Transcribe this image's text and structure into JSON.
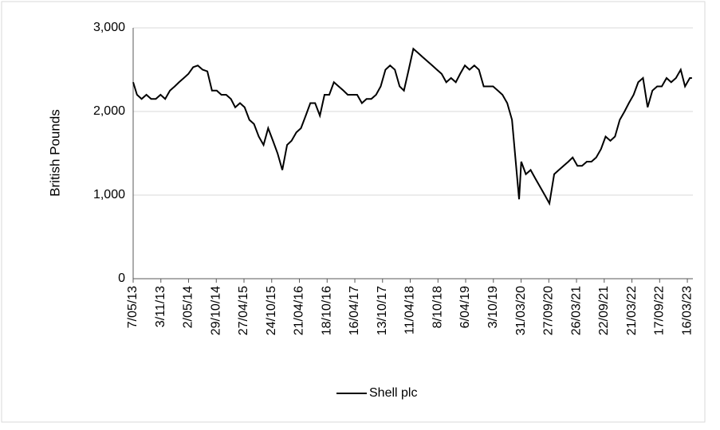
{
  "chart_data": {
    "type": "line",
    "y_label": "British Pounds",
    "x": [
      "7/05/13",
      "1/06/13",
      "1/07/13",
      "1/08/13",
      "1/09/13",
      "1/10/13",
      "1/11/13",
      "1/12/13",
      "1/01/14",
      "1/02/14",
      "1/03/14",
      "1/04/14",
      "1/05/14",
      "1/06/14",
      "1/07/14",
      "1/08/14",
      "1/09/14",
      "1/10/14",
      "1/11/14",
      "1/12/14",
      "1/01/15",
      "1/02/15",
      "1/03/15",
      "1/04/15",
      "1/05/15",
      "1/06/15",
      "1/07/15",
      "1/08/15",
      "1/09/15",
      "1/10/15",
      "1/11/15",
      "1/12/15",
      "1/01/16",
      "1/02/16",
      "1/03/16",
      "1/04/16",
      "1/05/16",
      "1/06/16",
      "1/07/16",
      "1/08/16",
      "1/09/16",
      "1/10/16",
      "1/11/16",
      "1/12/16",
      "1/01/17",
      "1/02/17",
      "1/03/17",
      "1/04/17",
      "1/05/17",
      "1/06/17",
      "1/07/17",
      "1/08/17",
      "1/09/17",
      "1/10/17",
      "1/11/17",
      "1/12/17",
      "1/01/18",
      "1/02/18",
      "1/03/18",
      "1/04/18",
      "1/05/18",
      "1/06/18",
      "1/07/18",
      "1/08/18",
      "1/09/18",
      "1/10/18",
      "1/11/18",
      "1/12/18",
      "1/01/19",
      "1/02/19",
      "1/03/19",
      "1/04/19",
      "1/05/19",
      "1/06/19",
      "1/07/19",
      "1/08/19",
      "1/09/19",
      "1/10/19",
      "1/11/19",
      "1/12/19",
      "1/01/20",
      "1/02/20",
      "1/03/20",
      "18/03/20",
      "1/04/20",
      "1/05/20",
      "1/06/20",
      "1/07/20",
      "1/08/20",
      "1/09/20",
      "1/10/20",
      "1/11/20",
      "1/12/20",
      "1/01/21",
      "1/02/21",
      "1/03/21",
      "1/04/21",
      "1/05/21",
      "1/06/21",
      "1/07/21",
      "1/08/21",
      "1/09/21",
      "1/10/21",
      "1/11/21",
      "1/12/21",
      "1/01/22",
      "1/02/22",
      "1/03/22",
      "1/04/22",
      "1/05/22",
      "1/06/22",
      "1/07/22",
      "1/08/22",
      "1/09/22",
      "1/10/22",
      "1/11/22",
      "1/12/22",
      "1/01/23",
      "1/02/23",
      "1/03/23",
      "1/04/23",
      "15/04/23"
    ],
    "series": [
      {
        "name": "Shell plc",
        "color": "#000000",
        "values": [
          2350,
          2200,
          2150,
          2200,
          2150,
          2150,
          2200,
          2150,
          2250,
          2300,
          2350,
          2400,
          2450,
          2530,
          2550,
          2500,
          2480,
          2250,
          2250,
          2200,
          2200,
          2150,
          2050,
          2100,
          2050,
          1900,
          1850,
          1700,
          1600,
          1800,
          1650,
          1500,
          1300,
          1600,
          1650,
          1750,
          1800,
          1950,
          2100,
          2100,
          1950,
          2200,
          2200,
          2350,
          2300,
          2250,
          2200,
          2200,
          2200,
          2100,
          2150,
          2150,
          2200,
          2300,
          2500,
          2550,
          2500,
          2300,
          2250,
          2500,
          2750,
          2700,
          2650,
          2600,
          2550,
          2500,
          2450,
          2350,
          2400,
          2350,
          2450,
          2550,
          2500,
          2550,
          2500,
          2300,
          2300,
          2300,
          2250,
          2200,
          2100,
          1900,
          1300,
          950,
          1400,
          1250,
          1300,
          1200,
          1100,
          1000,
          900,
          1250,
          1300,
          1350,
          1400,
          1450,
          1350,
          1350,
          1400,
          1400,
          1450,
          1550,
          1700,
          1650,
          1700,
          1900,
          2000,
          2100,
          2200,
          2350,
          2400,
          2050,
          2250,
          2300,
          2300,
          2400,
          2350,
          2400,
          2500,
          2300,
          2400,
          2400
        ]
      }
    ],
    "xlim": [
      "7/05/13",
      "21/04/23"
    ],
    "xticks": [
      "7/05/13",
      "3/11/13",
      "2/05/14",
      "29/10/14",
      "27/04/15",
      "24/10/15",
      "21/04/16",
      "18/10/16",
      "16/04/17",
      "13/10/17",
      "11/04/18",
      "8/10/18",
      "6/04/19",
      "3/10/19",
      "31/03/20",
      "27/09/20",
      "26/03/21",
      "22/09/21",
      "21/03/22",
      "17/09/22",
      "16/03/23"
    ],
    "ylim": [
      0,
      3000
    ],
    "yticks": [
      0,
      {
        "value": 1000,
        "label": "1,000"
      },
      {
        "value": 2000,
        "label": "2,000"
      },
      {
        "value": 3000,
        "label": "3,000"
      }
    ],
    "grid": true,
    "legend": "bottom"
  }
}
